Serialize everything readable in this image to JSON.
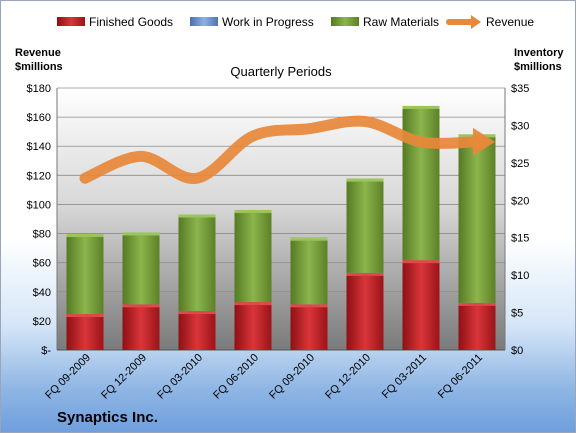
{
  "chart_data": {
    "type": "bar",
    "title": "Quarterly Periods",
    "company": "Synaptics Inc.",
    "categories": [
      "FQ 09-2009",
      "FQ 12-2009",
      "FQ 03-2010",
      "FQ 06-2010",
      "FQ 09-2010",
      "FQ 12-2010",
      "FQ 03-2011",
      "FQ 06-2011"
    ],
    "stacked": true,
    "series": [
      {
        "name": "Finished Goods",
        "axis": "right",
        "color": "#c0272d",
        "values": [
          4.8,
          6.1,
          5.2,
          6.4,
          6.1,
          10.3,
          12.0,
          6.3
        ]
      },
      {
        "name": "Work in Progress",
        "axis": "right",
        "color": "#6f93cf",
        "values": [
          0,
          0,
          0,
          0,
          0,
          0,
          0,
          0
        ]
      },
      {
        "name": "Raw Materials",
        "axis": "right",
        "color": "#76a03a",
        "values": [
          10.7,
          9.6,
          12.9,
          12.3,
          8.9,
          12.6,
          20.6,
          22.5
        ]
      },
      {
        "name": "Revenue",
        "axis": "left",
        "type": "line",
        "color": "#e8883a",
        "values": [
          118,
          133,
          118,
          147,
          152,
          157,
          143,
          143
        ]
      }
    ],
    "left_axis": {
      "label_line1": "Revenue",
      "label_line2": "$millions",
      "ylim": [
        0,
        180
      ],
      "ticks": [
        "$-",
        "$20",
        "$40",
        "$60",
        "$80",
        "$100",
        "$120",
        "$140",
        "$160",
        "$180"
      ]
    },
    "right_axis": {
      "label_line1": "Inventory",
      "label_line2": "$millions",
      "ylim": [
        0,
        35
      ],
      "ticks": [
        "$0",
        "$5",
        "$10",
        "$15",
        "$20",
        "$25",
        "$30",
        "$35"
      ]
    },
    "grid": true,
    "legend_position": "top"
  }
}
